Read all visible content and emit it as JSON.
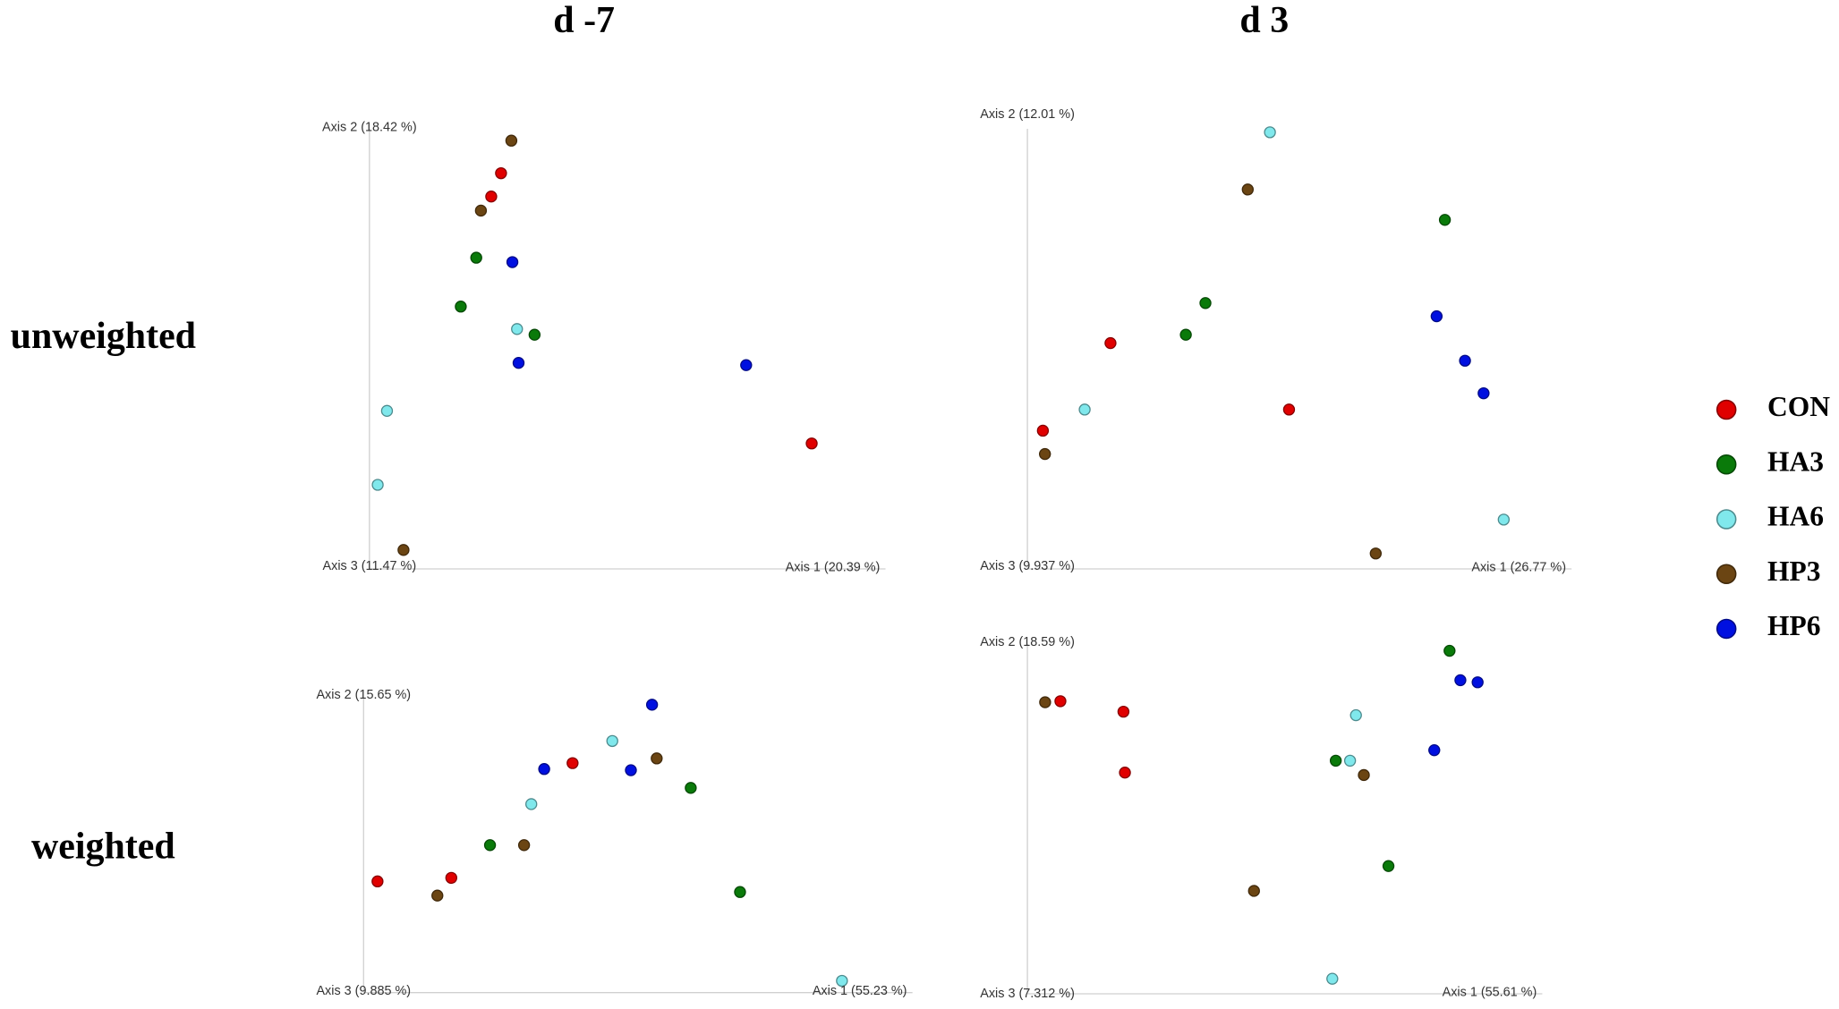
{
  "column_titles": [
    "d -7",
    "d 3"
  ],
  "row_labels": [
    "unweighted",
    "weighted"
  ],
  "chart_data": [
    {
      "type": "scatter",
      "x_label": "Axis 1 (20.39 %)",
      "y_label": "Axis 2 (18.42 %)",
      "z_label": "Axis 3 (11.47 %)",
      "xlim": [
        0,
        100
      ],
      "ylim": [
        0,
        100
      ],
      "series": [
        {
          "name": "CON",
          "color": "#e00000",
          "x": [
            25.5,
            23.6,
            85.7
          ],
          "values": [
            89.9,
            84.6,
            28.5
          ]
        },
        {
          "name": "HA3",
          "color": "#0a7a0a",
          "x": [
            20.7,
            17.7,
            32.0
          ],
          "values": [
            70.7,
            59.6,
            53.2
          ]
        },
        {
          "name": "HA6",
          "color": "#80e8ec",
          "x": [
            28.6,
            3.4,
            1.6
          ],
          "values": [
            54.5,
            35.9,
            19.1
          ]
        },
        {
          "name": "HP3",
          "color": "#6b4513",
          "x": [
            27.5,
            21.6,
            6.6
          ],
          "values": [
            97.3,
            81.4,
            4.3
          ]
        },
        {
          "name": "HP6",
          "color": "#0010e0",
          "x": [
            27.7,
            28.9,
            73.0
          ],
          "values": [
            69.7,
            46.8,
            46.3
          ]
        }
      ]
    },
    {
      "type": "scatter",
      "x_label": "Axis 1 (26.77 %)",
      "y_label": "Axis 2 (12.01 %)",
      "z_label": "Axis 3 (9.937 %)",
      "xlim": [
        0,
        100
      ],
      "ylim": [
        0,
        100
      ],
      "series": [
        {
          "name": "CON",
          "color": "#e00000",
          "x": [
            16.1,
            50.7,
            3.0
          ],
          "values": [
            51.3,
            36.2,
            31.4
          ]
        },
        {
          "name": "HA3",
          "color": "#0a7a0a",
          "x": [
            80.9,
            34.5,
            30.7
          ],
          "values": [
            79.3,
            60.4,
            53.2
          ]
        },
        {
          "name": "HA6",
          "color": "#80e8ec",
          "x": [
            47.0,
            11.1,
            92.3
          ],
          "values": [
            99.2,
            36.2,
            11.2
          ]
        },
        {
          "name": "HP3",
          "color": "#6b4513",
          "x": [
            42.7,
            3.4,
            67.5
          ],
          "values": [
            86.2,
            26.1,
            3.5
          ]
        },
        {
          "name": "HP6",
          "color": "#0010e0",
          "x": [
            79.3,
            84.8,
            88.4
          ],
          "values": [
            57.4,
            47.3,
            39.9
          ]
        }
      ]
    },
    {
      "type": "scatter",
      "x_label": "Axis 1 (55.23 %)",
      "y_label": "Axis 2 (15.65 %)",
      "z_label": "Axis 3 (9.885 %)",
      "xlim": [
        0,
        100
      ],
      "ylim": [
        0,
        100
      ],
      "series": [
        {
          "name": "CON",
          "color": "#e00000",
          "x": [
            40.5,
            17.0,
            2.7
          ],
          "values": [
            77.8,
            38.9,
            37.7
          ]
        },
        {
          "name": "HA3",
          "color": "#0a7a0a",
          "x": [
            63.4,
            24.5,
            72.95
          ],
          "values": [
            69.4,
            50.0,
            34.1
          ]
        },
        {
          "name": "HA6",
          "color": "#80e8ec",
          "x": [
            48.2,
            32.5,
            92.7
          ],
          "values": [
            85.3,
            63.9,
            4.0
          ]
        },
        {
          "name": "HP3",
          "color": "#6b4513",
          "x": [
            56.8,
            31.1,
            14.3
          ],
          "values": [
            79.4,
            50.0,
            32.9
          ]
        },
        {
          "name": "HP6",
          "color": "#0010e0",
          "x": [
            55.9,
            35.0,
            51.8
          ],
          "values": [
            97.6,
            75.8,
            75.4
          ]
        }
      ]
    },
    {
      "type": "scatter",
      "x_label": "Axis 1 (55.61 %)",
      "y_label": "Axis 2 (18.59 %)",
      "z_label": "Axis 3 (7.312 %)",
      "xlim": [
        0,
        100
      ],
      "ylim": [
        0,
        100
      ],
      "series": [
        {
          "name": "CON",
          "color": "#e00000",
          "x": [
            6.7,
            19.5,
            19.8
          ],
          "values": [
            83.6,
            80.6,
            63.2
          ]
        },
        {
          "name": "HA3",
          "color": "#0a7a0a",
          "x": [
            85.7,
            62.6,
            73.3
          ],
          "values": [
            98.0,
            66.6,
            36.5
          ]
        },
        {
          "name": "HA6",
          "color": "#80e8ec",
          "x": [
            66.7,
            65.5,
            61.9
          ],
          "values": [
            79.6,
            66.6,
            4.3
          ]
        },
        {
          "name": "HP3",
          "color": "#6b4513",
          "x": [
            3.6,
            68.3,
            46.0
          ],
          "values": [
            83.3,
            62.5,
            29.4
          ]
        },
        {
          "name": "HP6",
          "color": "#0010e0",
          "x": [
            87.9,
            91.4,
            82.6
          ],
          "values": [
            89.6,
            89.0,
            69.6
          ]
        }
      ]
    }
  ]
}
